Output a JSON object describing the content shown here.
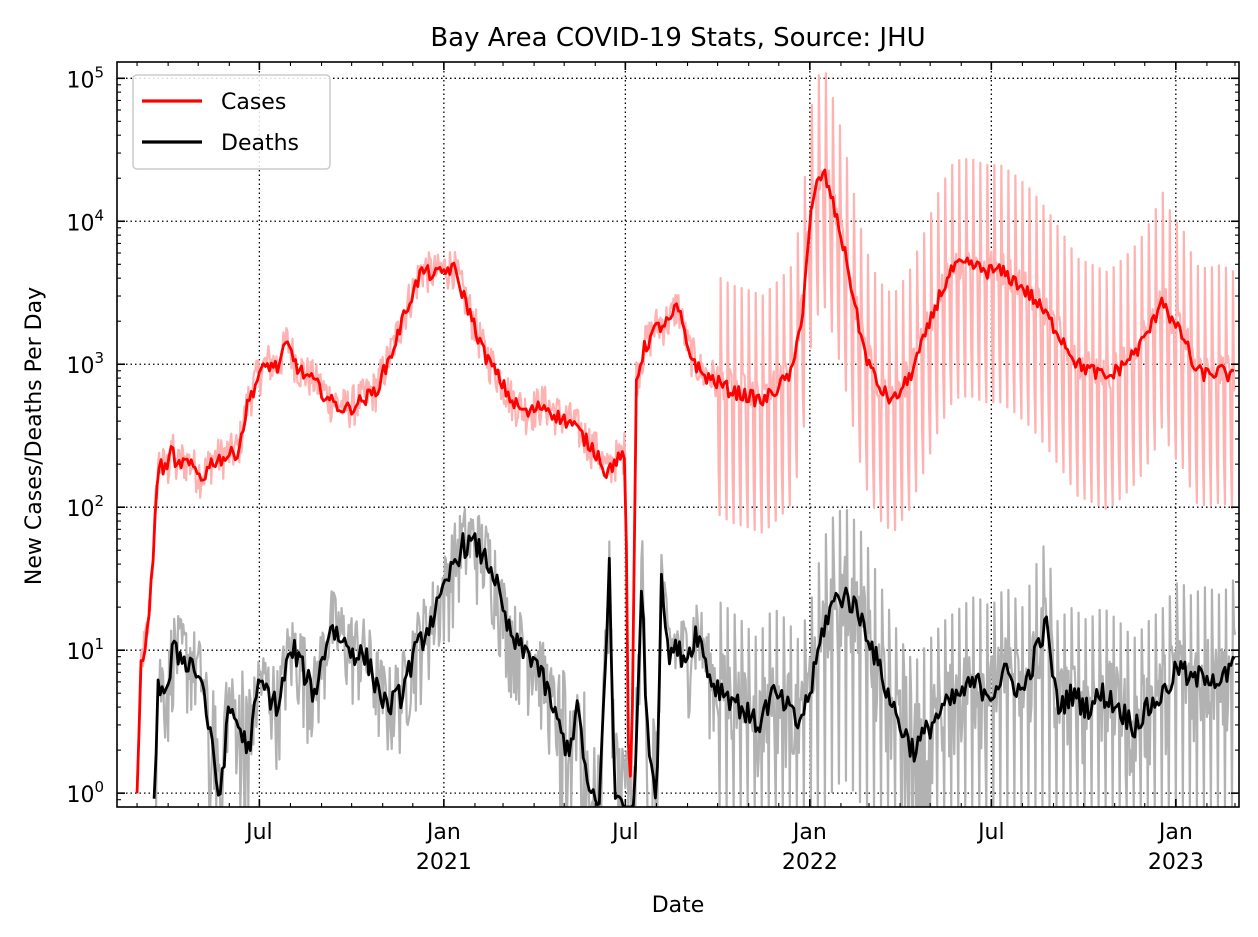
{
  "chart_data": {
    "type": "line",
    "title": "Bay Area COVID-19 Stats, Source: JHU",
    "xlabel": "Date",
    "ylabel": "New Cases/Deaths Per Day",
    "yscale": "log",
    "ylim": [
      0.8,
      130000
    ],
    "xlim": [
      "2020-02-10",
      "2023-03-05"
    ],
    "grid": true,
    "legend": {
      "position": "top-left",
      "entries": [
        "Cases",
        "Deaths"
      ]
    },
    "y_ticks": [
      {
        "value": 1,
        "base": "10",
        "exp": "0"
      },
      {
        "value": 10,
        "base": "10",
        "exp": "1"
      },
      {
        "value": 100,
        "base": "10",
        "exp": "2"
      },
      {
        "value": 1000,
        "base": "10",
        "exp": "3"
      },
      {
        "value": 10000,
        "base": "10",
        "exp": "4"
      },
      {
        "value": 100000,
        "base": "10",
        "exp": "5"
      }
    ],
    "x_ticks": [
      {
        "date": "2020-07-01",
        "label": "Jul",
        "year": ""
      },
      {
        "date": "2021-01-01",
        "label": "Jan",
        "year": "2021"
      },
      {
        "date": "2021-07-01",
        "label": "Jul",
        "year": ""
      },
      {
        "date": "2022-01-01",
        "label": "Jan",
        "year": "2022"
      },
      {
        "date": "2022-07-01",
        "label": "Jul",
        "year": ""
      },
      {
        "date": "2023-01-01",
        "label": "Jan",
        "year": "2023"
      }
    ],
    "series": [
      {
        "name": "Cases",
        "color": "#ff0000",
        "raw_color": "#ffb2b2",
        "smoothed": [
          [
            "2020-03-01",
            1
          ],
          [
            "2020-03-05",
            8
          ],
          [
            "2020-03-12",
            14
          ],
          [
            "2020-03-18",
            60
          ],
          [
            "2020-03-22",
            200
          ],
          [
            "2020-04-01",
            180
          ],
          [
            "2020-04-04",
            300
          ],
          [
            "2020-04-08",
            180
          ],
          [
            "2020-04-15",
            210
          ],
          [
            "2020-04-25",
            190
          ],
          [
            "2020-05-05",
            160
          ],
          [
            "2020-05-15",
            210
          ],
          [
            "2020-06-01",
            230
          ],
          [
            "2020-06-10",
            250
          ],
          [
            "2020-06-20",
            550
          ],
          [
            "2020-07-01",
            850
          ],
          [
            "2020-07-10",
            1000
          ],
          [
            "2020-07-20",
            950
          ],
          [
            "2020-07-28",
            1400
          ],
          [
            "2020-08-10",
            900
          ],
          [
            "2020-08-25",
            750
          ],
          [
            "2020-09-10",
            550
          ],
          [
            "2020-09-25",
            480
          ],
          [
            "2020-10-10",
            550
          ],
          [
            "2020-10-25",
            650
          ],
          [
            "2020-11-10",
            1200
          ],
          [
            "2020-11-25",
            2500
          ],
          [
            "2020-12-10",
            4500
          ],
          [
            "2020-12-25",
            4200
          ],
          [
            "2021-01-10",
            4800
          ],
          [
            "2021-01-25",
            2500
          ],
          [
            "2021-02-10",
            1200
          ],
          [
            "2021-02-25",
            800
          ],
          [
            "2021-03-10",
            550
          ],
          [
            "2021-03-25",
            450
          ],
          [
            "2021-04-10",
            520
          ],
          [
            "2021-04-25",
            430
          ],
          [
            "2021-05-10",
            380
          ],
          [
            "2021-05-25",
            280
          ],
          [
            "2021-06-05",
            230
          ],
          [
            "2021-06-12",
            170
          ],
          [
            "2021-06-20",
            210
          ],
          [
            "2021-06-27",
            220
          ],
          [
            "2021-07-01",
            250
          ],
          [
            "2021-07-04",
            2
          ],
          [
            "2021-07-07",
            1
          ],
          [
            "2021-07-12",
            800
          ],
          [
            "2021-07-20",
            1300
          ],
          [
            "2021-08-01",
            1800
          ],
          [
            "2021-08-15",
            2000
          ],
          [
            "2021-08-22",
            2600
          ],
          [
            "2021-09-01",
            1300
          ],
          [
            "2021-09-15",
            850
          ],
          [
            "2021-10-01",
            750
          ],
          [
            "2021-10-15",
            650
          ],
          [
            "2021-11-01",
            600
          ],
          [
            "2021-11-15",
            550
          ],
          [
            "2021-12-01",
            700
          ],
          [
            "2021-12-15",
            900
          ],
          [
            "2021-12-25",
            2500
          ],
          [
            "2022-01-01",
            10000
          ],
          [
            "2022-01-08",
            18000
          ],
          [
            "2022-01-15",
            22000
          ],
          [
            "2022-01-22",
            15000
          ],
          [
            "2022-02-01",
            8000
          ],
          [
            "2022-02-10",
            4000
          ],
          [
            "2022-02-18",
            2000
          ],
          [
            "2022-02-25",
            1200
          ],
          [
            "2022-03-10",
            700
          ],
          [
            "2022-03-25",
            550
          ],
          [
            "2022-04-10",
            800
          ],
          [
            "2022-04-25",
            1500
          ],
          [
            "2022-05-10",
            3000
          ],
          [
            "2022-05-25",
            4800
          ],
          [
            "2022-06-10",
            5000
          ],
          [
            "2022-06-25",
            4500
          ],
          [
            "2022-07-10",
            4500
          ],
          [
            "2022-07-25",
            3800
          ],
          [
            "2022-08-10",
            3000
          ],
          [
            "2022-08-25",
            2200
          ],
          [
            "2022-09-10",
            1500
          ],
          [
            "2022-09-25",
            1000
          ],
          [
            "2022-10-10",
            900
          ],
          [
            "2022-10-25",
            800
          ],
          [
            "2022-11-10",
            1000
          ],
          [
            "2022-11-25",
            1300
          ],
          [
            "2022-12-10",
            2000
          ],
          [
            "2022-12-18",
            3000
          ],
          [
            "2022-12-28",
            2000
          ],
          [
            "2023-01-10",
            1500
          ],
          [
            "2023-01-20",
            900
          ],
          [
            "2023-02-01",
            850
          ],
          [
            "2023-02-15",
            900
          ],
          [
            "2023-03-01",
            800
          ]
        ]
      },
      {
        "name": "Deaths",
        "color": "#000000",
        "raw_color": "#b2b2b2",
        "smoothed": [
          [
            "2020-03-18",
            0.8
          ],
          [
            "2020-03-22",
            6
          ],
          [
            "2020-04-01",
            5
          ],
          [
            "2020-04-05",
            10
          ],
          [
            "2020-04-15",
            9
          ],
          [
            "2020-04-25",
            8
          ],
          [
            "2020-05-05",
            6
          ],
          [
            "2020-05-15",
            2
          ],
          [
            "2020-05-22",
            0.9
          ],
          [
            "2020-06-01",
            4
          ],
          [
            "2020-06-10",
            3
          ],
          [
            "2020-06-20",
            2
          ],
          [
            "2020-07-01",
            6
          ],
          [
            "2020-07-10",
            5
          ],
          [
            "2020-07-20",
            4
          ],
          [
            "2020-07-28",
            8
          ],
          [
            "2020-08-05",
            10
          ],
          [
            "2020-08-15",
            7
          ],
          [
            "2020-08-25",
            5
          ],
          [
            "2020-09-10",
            15
          ],
          [
            "2020-09-20",
            12
          ],
          [
            "2020-10-01",
            10
          ],
          [
            "2020-10-15",
            9
          ],
          [
            "2020-10-25",
            6
          ],
          [
            "2020-11-05",
            4
          ],
          [
            "2020-11-20",
            5
          ],
          [
            "2020-12-01",
            9
          ],
          [
            "2020-12-15",
            14
          ],
          [
            "2021-01-01",
            25
          ],
          [
            "2021-01-10",
            40
          ],
          [
            "2021-01-20",
            55
          ],
          [
            "2021-02-01",
            55
          ],
          [
            "2021-02-10",
            45
          ],
          [
            "2021-02-20",
            35
          ],
          [
            "2021-03-01",
            18
          ],
          [
            "2021-03-10",
            12
          ],
          [
            "2021-03-20",
            10
          ],
          [
            "2021-04-01",
            9
          ],
          [
            "2021-04-15",
            5
          ],
          [
            "2021-04-25",
            3
          ],
          [
            "2021-05-05",
            2
          ],
          [
            "2021-05-15",
            4
          ],
          [
            "2021-05-25",
            1
          ],
          [
            "2021-06-05",
            0.8
          ],
          [
            "2021-06-15",
            40
          ],
          [
            "2021-06-20",
            1
          ],
          [
            "2021-07-01",
            0.8
          ],
          [
            "2021-07-10",
            0.8
          ],
          [
            "2021-07-18",
            40
          ],
          [
            "2021-07-22",
            3
          ],
          [
            "2021-08-01",
            0.9
          ],
          [
            "2021-08-06",
            35
          ],
          [
            "2021-08-12",
            10
          ],
          [
            "2021-08-22",
            10
          ],
          [
            "2021-09-01",
            9
          ],
          [
            "2021-09-10",
            14
          ],
          [
            "2021-09-25",
            6
          ],
          [
            "2021-10-10",
            5
          ],
          [
            "2021-10-25",
            4
          ],
          [
            "2021-11-10",
            3
          ],
          [
            "2021-11-25",
            5
          ],
          [
            "2021-12-10",
            4
          ],
          [
            "2021-12-20",
            3
          ],
          [
            "2022-01-01",
            5
          ],
          [
            "2022-01-15",
            15
          ],
          [
            "2022-01-25",
            22
          ],
          [
            "2022-02-05",
            25
          ],
          [
            "2022-02-15",
            20
          ],
          [
            "2022-02-25",
            15
          ],
          [
            "2022-03-10",
            8
          ],
          [
            "2022-03-20",
            5
          ],
          [
            "2022-04-01",
            3
          ],
          [
            "2022-04-15",
            2
          ],
          [
            "2022-05-01",
            3
          ],
          [
            "2022-05-15",
            4
          ],
          [
            "2022-06-01",
            5
          ],
          [
            "2022-06-15",
            6
          ],
          [
            "2022-07-01",
            5
          ],
          [
            "2022-07-15",
            7
          ],
          [
            "2022-08-01",
            5
          ],
          [
            "2022-08-15",
            10
          ],
          [
            "2022-08-25",
            15
          ],
          [
            "2022-09-05",
            4
          ],
          [
            "2022-09-20",
            5
          ],
          [
            "2022-10-05",
            4
          ],
          [
            "2022-10-20",
            5
          ],
          [
            "2022-11-05",
            4
          ],
          [
            "2022-11-20",
            3
          ],
          [
            "2022-12-05",
            4
          ],
          [
            "2022-12-20",
            5
          ],
          [
            "2023-01-05",
            8
          ],
          [
            "2023-01-15",
            6
          ],
          [
            "2023-02-01",
            7
          ],
          [
            "2023-02-15",
            6
          ],
          [
            "2023-03-01",
            8
          ]
        ]
      }
    ]
  }
}
